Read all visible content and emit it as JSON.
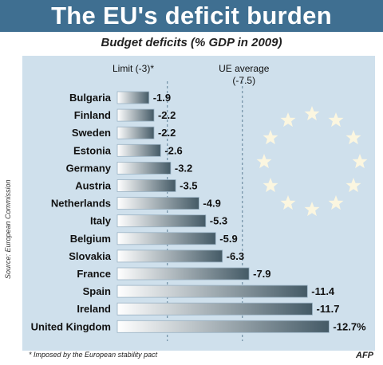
{
  "header": {
    "title": "The EU's deficit burden"
  },
  "chart_data": {
    "type": "bar",
    "orientation": "horizontal",
    "title": "Budget deficits (% GDP in 2009)",
    "categories": [
      "Bulgaria",
      "Finland",
      "Sweden",
      "Estonia",
      "Germany",
      "Austria",
      "Netherlands",
      "Italy",
      "Belgium",
      "Slovakia",
      "France",
      "Spain",
      "Ireland",
      "United Kingdom"
    ],
    "values": [
      -1.9,
      -2.2,
      -2.2,
      -2.6,
      -3.2,
      -3.5,
      -4.9,
      -5.3,
      -5.9,
      -6.3,
      -7.9,
      -11.4,
      -11.7,
      -12.7
    ],
    "value_labels": [
      "-1.9",
      "-2.2",
      "-2.2",
      "-2.6",
      "-3.2",
      "-3.5",
      "-4.9",
      "-5.3",
      "-5.9",
      "-6.3",
      "-7.9",
      "-11.4",
      "-11.7",
      "-12.7%"
    ],
    "reference_lines": [
      {
        "label": "Limit (-3)*",
        "value": -3
      },
      {
        "label": "UE average",
        "sublabel": "(-7.5)",
        "value": -7.5
      }
    ],
    "xlim": [
      0,
      -13
    ]
  },
  "footer": {
    "source": "Source: European Commission",
    "footnote": "* Imposed by the European stability pact",
    "credit": "AFP"
  },
  "colors": {
    "title_bar": "#3f6f91",
    "panel": "#cfe0ec",
    "bar_dark": "#445a66",
    "bar_light": "#ffffff",
    "star": "#fbf6e0"
  },
  "decor": {
    "star_icon": "eu-star-icon",
    "star_count": 12
  }
}
